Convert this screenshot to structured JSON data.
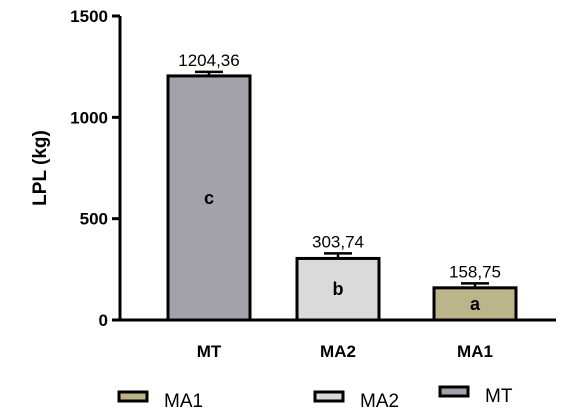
{
  "chart_data": {
    "type": "bar",
    "title": "",
    "xlabel": "",
    "ylabel": "LPL (kg)",
    "ylim": [
      0,
      1500
    ],
    "yticks": [
      0,
      500,
      1000,
      1500
    ],
    "grid": false,
    "legend_position": "bottom",
    "categories": [
      "MT",
      "MA2",
      "MA1"
    ],
    "values": [
      1204.36,
      303.74,
      158.75
    ],
    "errors": [
      20,
      25,
      22
    ],
    "value_labels": [
      "1204,36",
      "303,74",
      "158,75"
    ],
    "letters": [
      "c",
      "b",
      "a"
    ],
    "colors": [
      "#a3a2aa",
      "#dadada",
      "#bdb58a"
    ],
    "legend": [
      {
        "label": "MA1",
        "color": "#bdb58a"
      },
      {
        "label": "MA2",
        "color": "#dadada"
      },
      {
        "label": "MT",
        "color": "#a3a2aa"
      }
    ]
  }
}
